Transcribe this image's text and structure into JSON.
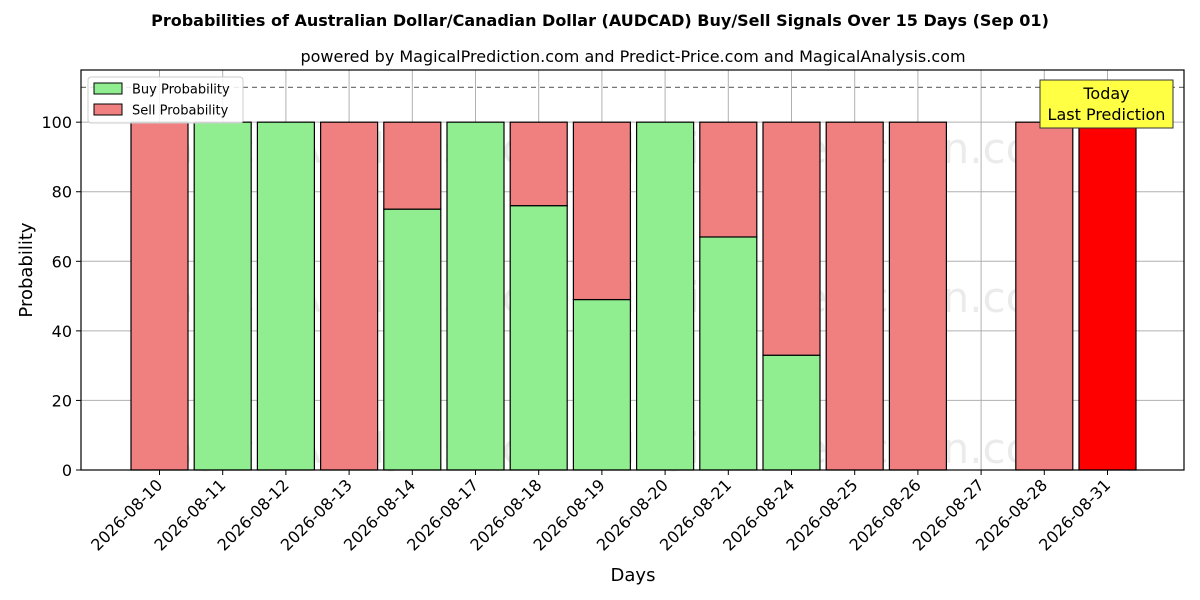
{
  "chart_data": {
    "type": "bar",
    "stacked": true,
    "title": "Probabilities of Australian Dollar/Canadian Dollar (AUDCAD) Buy/Sell Signals Over 15 Days (Sep 01)",
    "subtitle": "powered by MagicalPrediction.com and Predict-Price.com and MagicalAnalysis.com",
    "xlabel": "Days",
    "ylabel": "Probability",
    "ylim": [
      0,
      115
    ],
    "yticks": [
      0,
      20,
      40,
      60,
      80,
      100
    ],
    "reference_line": 110,
    "grid": true,
    "legend_position": "top-left",
    "categories": [
      "2026-08-10",
      "2026-08-11",
      "2026-08-12",
      "2026-08-13",
      "2026-08-14",
      "2026-08-17",
      "2026-08-18",
      "2026-08-19",
      "2026-08-20",
      "2026-08-21",
      "2026-08-24",
      "2026-08-25",
      "2026-08-26",
      "2026-08-27",
      "2026-08-28",
      "2026-08-31"
    ],
    "series": [
      {
        "name": "Buy Probability",
        "color": "#90ee90",
        "values": [
          0,
          100,
          100,
          0,
          75,
          100,
          76,
          49,
          100,
          67,
          33,
          0,
          0,
          null,
          0,
          0
        ]
      },
      {
        "name": "Sell Probability",
        "color": "#f08080",
        "values": [
          100,
          0,
          0,
          100,
          25,
          0,
          24,
          51,
          0,
          33,
          67,
          100,
          100,
          null,
          100,
          100
        ]
      }
    ],
    "highlight": {
      "index": 15,
      "color": "#ff0000"
    },
    "annotation": {
      "line1": "Today",
      "line2": "Last Prediction",
      "background": "#ffff44"
    },
    "watermarks": [
      "MagicalAnalysis.com",
      "MagicalPrediction.com"
    ]
  }
}
